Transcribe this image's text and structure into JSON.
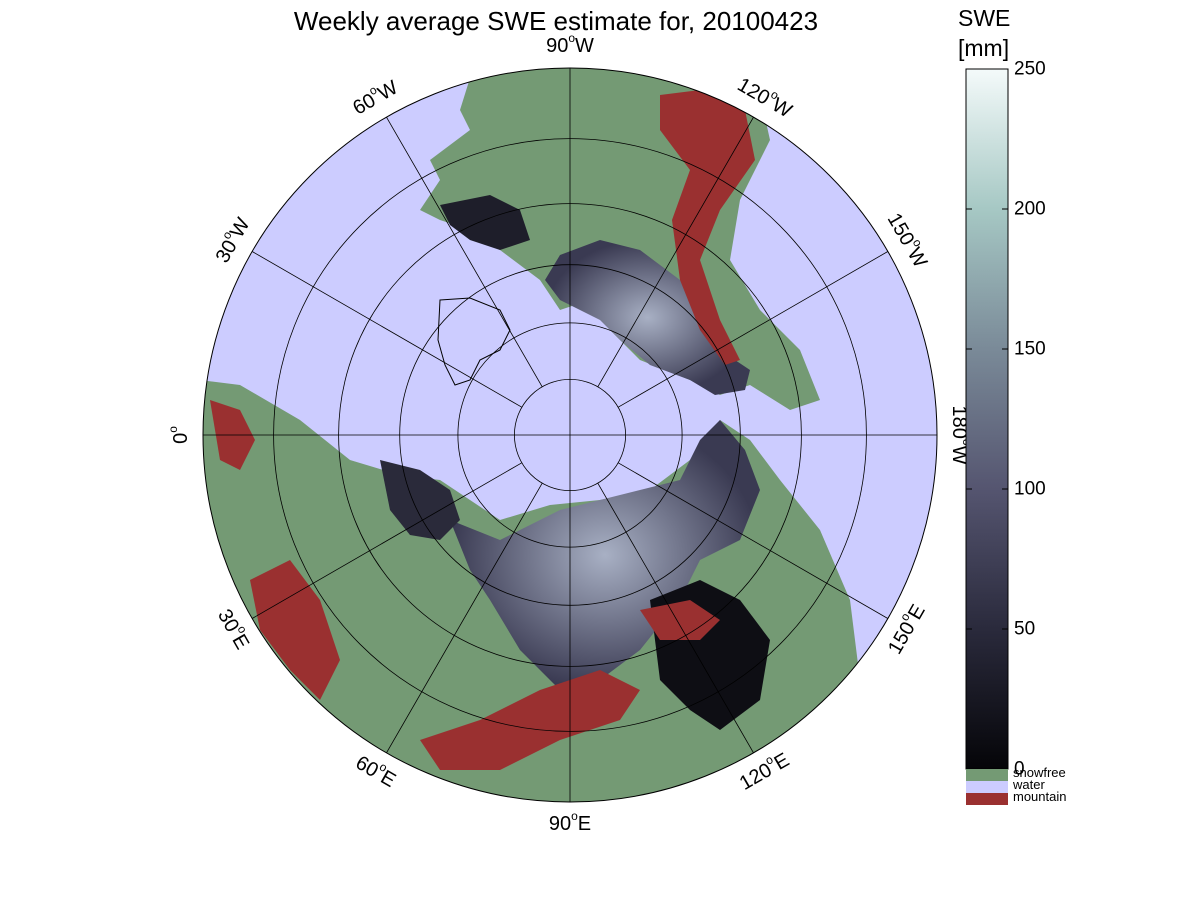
{
  "title": "Weekly average SWE estimate for, 20100423",
  "colorbar": {
    "title_line1": "SWE",
    "title_line2": "[mm]",
    "ticks": [
      "0",
      "50",
      "100",
      "150",
      "200",
      "250"
    ],
    "range": [
      0,
      250
    ],
    "categories": [
      {
        "label": "snowfree",
        "color": "#749a74"
      },
      {
        "label": "water",
        "color": "#ccccff"
      },
      {
        "label": "mountain",
        "color": "#9a3030"
      }
    ]
  },
  "map": {
    "projection": "north polar stereographic",
    "lat_circles": [
      30,
      40,
      50,
      60,
      70,
      80
    ],
    "meridian_labels": [
      {
        "deg": "90",
        "hem": "W"
      },
      {
        "deg": "120",
        "hem": "W"
      },
      {
        "deg": "150",
        "hem": "W"
      },
      {
        "deg": "180",
        "hem": "W"
      },
      {
        "deg": "150",
        "hem": "E"
      },
      {
        "deg": "120",
        "hem": "E"
      },
      {
        "deg": "90",
        "hem": "E"
      },
      {
        "deg": "60",
        "hem": "E"
      },
      {
        "deg": "30",
        "hem": "E"
      },
      {
        "deg": "0",
        "hem": ""
      },
      {
        "deg": "30",
        "hem": "W"
      },
      {
        "deg": "60",
        "hem": "W"
      }
    ],
    "colors": {
      "water": "#ccccff",
      "snowfree": "#749a74",
      "mountain": "#9a3030",
      "snow_low": "#0a0a10",
      "snow_high": "#e6f2f0"
    }
  }
}
